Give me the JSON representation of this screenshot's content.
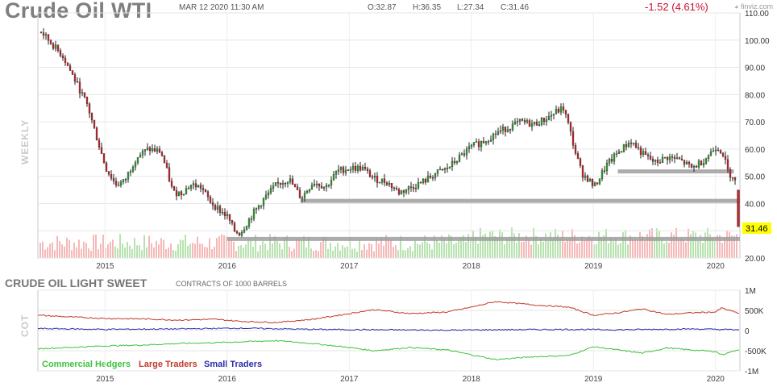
{
  "header": {
    "title": "Crude Oil WTI",
    "timestamp": "MAR 12 2020 11:30 AM",
    "open": "O:32.87",
    "high": "H:36.35",
    "low": "L:27.34",
    "close": "C:31.46",
    "change": "-1.52 (4.61%)",
    "brand": "finviz.com",
    "change_color": "#c8102e"
  },
  "price_panel": {
    "side_label": "WEEKLY",
    "last_price": "31.46",
    "last_price_bg": "#ffff00"
  },
  "cot_panel": {
    "title": "CRUDE OIL LIGHT SWEET",
    "note": "CONTRACTS OF 1000 BARRELS",
    "side_label": "COT",
    "legend": [
      {
        "label": "Commercial Hedgers",
        "color": "#3ec23e"
      },
      {
        "label": "Large Traders",
        "color": "#c0392b"
      },
      {
        "label": "Small Traders",
        "color": "#2c2caa"
      }
    ]
  },
  "chart_data": [
    {
      "type": "line",
      "title": "Crude Oil WTI",
      "ylim": [
        20,
        110
      ],
      "y_ticks": [
        "20.00",
        "30.00",
        "40.00",
        "50.00",
        "60.00",
        "70.00",
        "80.00",
        "90.00",
        "100.00",
        "110.00"
      ],
      "x_ticks": [
        "2015",
        "2016",
        "2017",
        "2018",
        "2019",
        "2020"
      ],
      "x_range": [
        2014.45,
        2020.2
      ],
      "series": [
        {
          "values_as": "weekly close (approx.)",
          "x": [
            2014.47,
            2014.55,
            2014.65,
            2014.75,
            2014.85,
            2014.92,
            2015.0,
            2015.08,
            2015.15,
            2015.25,
            2015.35,
            2015.45,
            2015.5,
            2015.55,
            2015.62,
            2015.7,
            2015.78,
            2015.85,
            2015.92,
            2016.0,
            2016.05,
            2016.1,
            2016.2,
            2016.3,
            2016.4,
            2016.5,
            2016.6,
            2016.7,
            2016.8,
            2016.9,
            2017.0,
            2017.1,
            2017.2,
            2017.3,
            2017.4,
            2017.5,
            2017.6,
            2017.7,
            2017.8,
            2017.9,
            2018.0,
            2018.1,
            2018.2,
            2018.3,
            2018.4,
            2018.5,
            2018.6,
            2018.7,
            2018.75,
            2018.8,
            2018.85,
            2018.9,
            2018.95,
            2019.0,
            2019.1,
            2019.2,
            2019.3,
            2019.4,
            2019.5,
            2019.6,
            2019.7,
            2019.8,
            2019.9,
            2020.0,
            2020.05,
            2020.1,
            2020.15,
            2020.19
          ],
          "y": [
            103,
            99,
            94,
            85,
            76,
            65,
            53,
            47,
            48,
            57,
            60,
            59,
            52,
            44,
            44,
            47,
            46,
            41,
            38,
            35,
            30,
            29,
            36,
            42,
            47,
            49,
            42,
            48,
            46,
            52,
            53,
            53,
            49,
            48,
            44,
            46,
            48,
            51,
            53,
            57,
            61,
            63,
            66,
            68,
            70,
            69,
            71,
            74,
            75,
            67,
            58,
            51,
            49,
            46,
            54,
            59,
            63,
            58,
            55,
            57,
            56,
            53,
            56,
            61,
            59,
            51,
            50,
            31.46
          ]
        }
      ],
      "levels": [
        {
          "x": [
            2019.2,
            2020.15
          ],
          "y": 51.8
        },
        {
          "x": [
            2016.6,
            2020.2
          ],
          "y": 41
        },
        {
          "x": [
            2016.0,
            2020.2
          ],
          "y": 27
        }
      ]
    },
    {
      "type": "line",
      "title": "CRUDE OIL LIGHT SWEET",
      "ylim": [
        -1000000,
        1000000
      ],
      "y_ticks": [
        "1M",
        "500K",
        "0",
        "-500K",
        "-1M"
      ],
      "x_ticks": [
        "2015",
        "2016",
        "2017",
        "2018",
        "2019",
        "2020"
      ],
      "x_range": [
        2014.45,
        2020.2
      ],
      "series": [
        {
          "name": "Commercial Hedgers",
          "color": "#3ec23e",
          "x": [
            2014.45,
            2014.7,
            2015.0,
            2015.3,
            2015.6,
            2015.9,
            2016.1,
            2016.4,
            2016.7,
            2017.0,
            2017.2,
            2017.5,
            2017.8,
            2018.0,
            2018.2,
            2018.5,
            2018.8,
            2019.0,
            2019.2,
            2019.4,
            2019.6,
            2019.8,
            2020.0,
            2020.05,
            2020.2
          ],
          "y": [
            -450000,
            -420000,
            -380000,
            -360000,
            -320000,
            -300000,
            -280000,
            -250000,
            -320000,
            -420000,
            -500000,
            -420000,
            -480000,
            -600000,
            -720000,
            -650000,
            -620000,
            -400000,
            -480000,
            -560000,
            -430000,
            -480000,
            -520000,
            -600000,
            -460000
          ]
        },
        {
          "name": "Large Traders",
          "color": "#c0392b",
          "x": [
            2014.45,
            2014.7,
            2015.0,
            2015.3,
            2015.6,
            2015.9,
            2016.1,
            2016.4,
            2016.7,
            2017.0,
            2017.2,
            2017.5,
            2017.8,
            2018.0,
            2018.2,
            2018.5,
            2018.8,
            2019.0,
            2019.2,
            2019.4,
            2019.6,
            2019.8,
            2020.0,
            2020.05,
            2020.2
          ],
          "y": [
            380000,
            340000,
            300000,
            290000,
            260000,
            280000,
            230000,
            200000,
            280000,
            420000,
            520000,
            420000,
            460000,
            580000,
            720000,
            640000,
            580000,
            380000,
            440000,
            540000,
            400000,
            440000,
            460000,
            560000,
            420000
          ]
        },
        {
          "name": "Small Traders",
          "color": "#2c2caa",
          "x": [
            2014.45,
            2015.0,
            2015.6,
            2016.1,
            2016.7,
            2017.2,
            2017.8,
            2018.2,
            2018.8,
            2019.2,
            2019.8,
            2020.2
          ],
          "y": [
            50000,
            30000,
            40000,
            60000,
            30000,
            20000,
            10000,
            20000,
            30000,
            20000,
            40000,
            20000
          ]
        }
      ]
    }
  ]
}
